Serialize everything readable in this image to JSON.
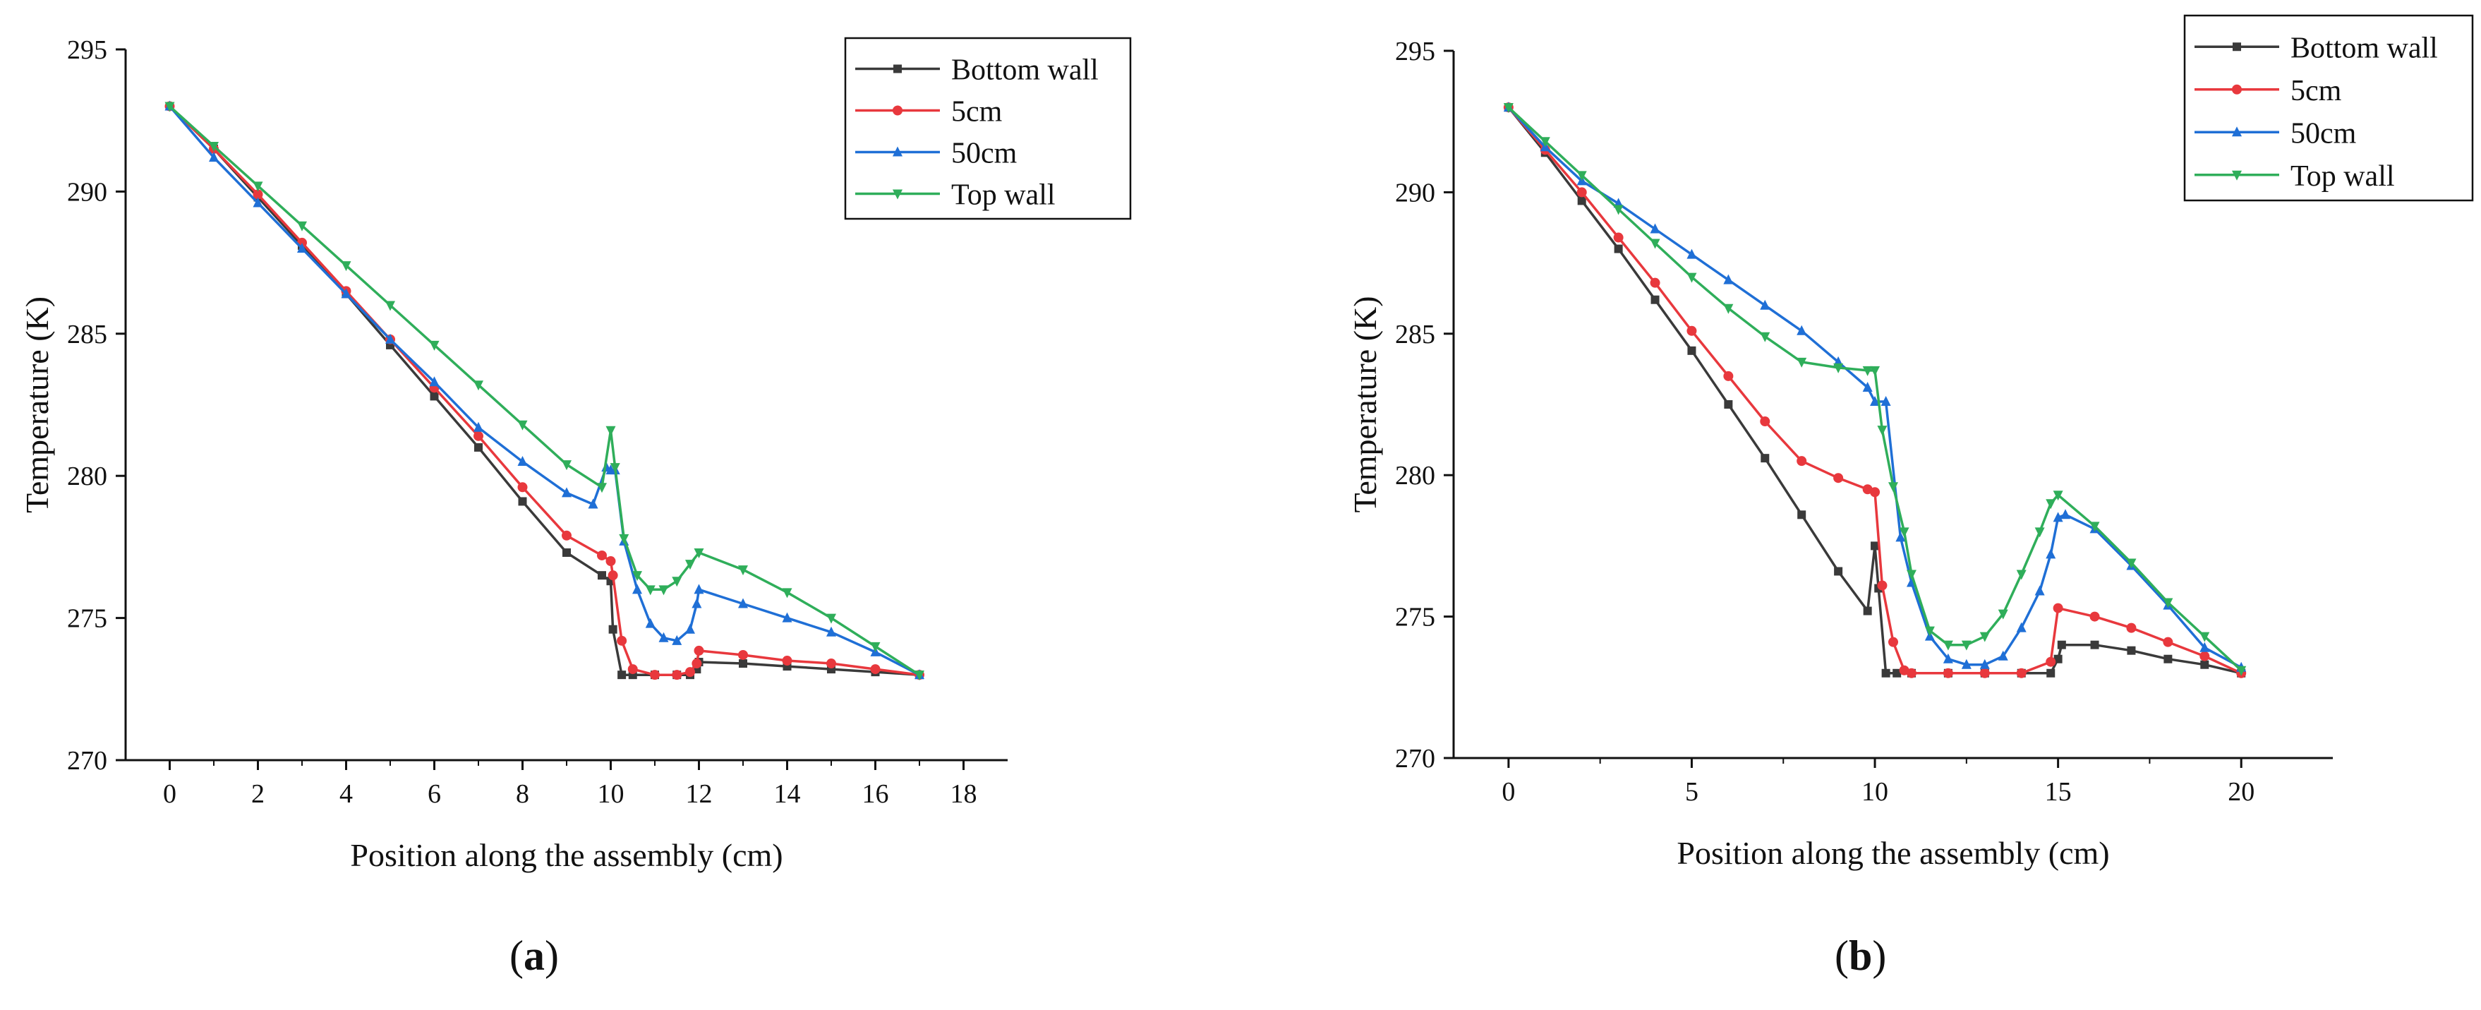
{
  "chart_data": [
    {
      "type": "line",
      "caption": "a",
      "xlabel": "Position along the assembly (cm)",
      "ylabel": "Temperature (K)",
      "xlim": [
        -1,
        19
      ],
      "ylim": [
        270,
        295
      ],
      "xticks": [
        0,
        2,
        4,
        6,
        8,
        10,
        12,
        14,
        16,
        18
      ],
      "yticks": [
        270,
        275,
        280,
        285,
        290,
        295
      ],
      "legend_position": "top-right",
      "series": [
        {
          "name": "Bottom wall",
          "color": "#3a3a3a",
          "marker": "square",
          "x": [
            0,
            1,
            2,
            3,
            4,
            5,
            6,
            7,
            8,
            9,
            9.8,
            10,
            10.05,
            10.25,
            10.5,
            11,
            11.5,
            11.8,
            11.95,
            12,
            13,
            14,
            15,
            16,
            17
          ],
          "y": [
            293,
            291.5,
            289.8,
            288.1,
            286.4,
            284.6,
            282.8,
            281.0,
            279.1,
            277.3,
            276.5,
            276.3,
            274.6,
            273.0,
            273.0,
            273.0,
            273.0,
            273.0,
            273.2,
            273.45,
            273.4,
            273.3,
            273.2,
            273.1,
            273.0
          ]
        },
        {
          "name": "5cm",
          "color": "#e8383d",
          "marker": "circle",
          "x": [
            0,
            1,
            2,
            3,
            4,
            5,
            6,
            7,
            8,
            9,
            9.8,
            10,
            10.05,
            10.25,
            10.5,
            11,
            11.5,
            11.8,
            11.95,
            12,
            13,
            14,
            15,
            16,
            17
          ],
          "y": [
            293,
            291.5,
            289.9,
            288.2,
            286.5,
            284.8,
            283.1,
            281.4,
            279.6,
            277.9,
            277.2,
            277.0,
            276.5,
            274.2,
            273.2,
            273.0,
            273.0,
            273.1,
            273.4,
            273.85,
            273.7,
            273.5,
            273.4,
            273.2,
            273.0
          ]
        },
        {
          "name": "50cm",
          "color": "#1f6fd6",
          "marker": "triangle-up",
          "x": [
            0,
            1,
            2,
            3,
            4,
            5,
            6,
            7,
            8,
            9,
            9.6,
            9.9,
            10,
            10.1,
            10.3,
            10.6,
            10.9,
            11.2,
            11.5,
            11.8,
            11.95,
            12,
            13,
            14,
            15,
            16,
            17
          ],
          "y": [
            293,
            291.2,
            289.6,
            288.0,
            286.4,
            284.8,
            283.3,
            281.7,
            280.5,
            279.4,
            279.0,
            280.3,
            280.2,
            280.2,
            277.7,
            276.0,
            274.8,
            274.3,
            274.2,
            274.6,
            275.5,
            276.0,
            275.5,
            275.0,
            274.5,
            273.8,
            273.0
          ]
        },
        {
          "name": "Top wall",
          "color": "#2fae5a",
          "marker": "triangle-down",
          "x": [
            0,
            1,
            2,
            3,
            4,
            5,
            6,
            7,
            8,
            9,
            9.8,
            10,
            10.1,
            10.3,
            10.6,
            10.9,
            11.2,
            11.5,
            11.8,
            12,
            13,
            14,
            15,
            16,
            17
          ],
          "y": [
            293,
            291.6,
            290.2,
            288.8,
            287.4,
            286.0,
            284.6,
            283.2,
            281.8,
            280.4,
            279.6,
            281.6,
            280.3,
            277.8,
            276.5,
            276.0,
            276.0,
            276.3,
            276.9,
            277.3,
            276.7,
            275.9,
            275.0,
            274.0,
            273.0
          ]
        }
      ]
    },
    {
      "type": "line",
      "caption": "b",
      "xlabel": "Position along the assembly (cm)",
      "ylabel": "Temperature (K)",
      "xlim": [
        -1.5,
        22.5
      ],
      "ylim": [
        270,
        295
      ],
      "xticks": [
        0,
        5,
        10,
        15,
        20
      ],
      "yticks": [
        270,
        275,
        280,
        285,
        290,
        295
      ],
      "legend_position": "top-right",
      "series": [
        {
          "name": "Bottom wall",
          "color": "#3a3a3a",
          "marker": "square",
          "x": [
            0,
            1,
            2,
            3,
            4,
            5,
            6,
            7,
            8,
            9,
            9.8,
            10,
            10.1,
            10.3,
            10.6,
            11,
            12,
            13,
            14,
            14.8,
            15,
            15.1,
            16,
            17,
            18,
            19,
            20
          ],
          "y": [
            293,
            291.4,
            289.7,
            288.0,
            286.2,
            284.4,
            282.5,
            280.6,
            278.6,
            276.6,
            275.2,
            277.5,
            276.0,
            273.0,
            273.0,
            273.0,
            273.0,
            273.0,
            273.0,
            273.0,
            273.5,
            274.0,
            274.0,
            273.8,
            273.5,
            273.3,
            273.0
          ]
        },
        {
          "name": "5cm",
          "color": "#e8383d",
          "marker": "circle",
          "x": [
            0,
            1,
            2,
            3,
            4,
            5,
            6,
            7,
            8,
            9,
            9.8,
            10,
            10.2,
            10.5,
            10.8,
            11,
            12,
            13,
            14,
            14.8,
            15,
            16,
            17,
            18,
            19,
            20
          ],
          "y": [
            293,
            291.5,
            290.0,
            288.4,
            286.8,
            285.1,
            283.5,
            281.9,
            280.5,
            279.9,
            279.5,
            279.4,
            276.1,
            274.1,
            273.1,
            273.0,
            273.0,
            273.0,
            273.0,
            273.4,
            275.3,
            275.0,
            274.6,
            274.1,
            273.6,
            273.0
          ]
        },
        {
          "name": "50cm",
          "color": "#1f6fd6",
          "marker": "triangle-up",
          "x": [
            0,
            1,
            2,
            3,
            4,
            5,
            6,
            7,
            8,
            9,
            9.8,
            10,
            10.3,
            10.7,
            11,
            11.5,
            12,
            12.5,
            13,
            13.5,
            14,
            14.5,
            14.8,
            15,
            15.2,
            16,
            17,
            18,
            19,
            20
          ],
          "y": [
            293,
            291.6,
            290.4,
            289.6,
            288.7,
            287.8,
            286.9,
            286.0,
            285.1,
            284.0,
            283.1,
            282.6,
            282.6,
            277.8,
            276.2,
            274.3,
            273.5,
            273.3,
            273.3,
            273.6,
            274.6,
            275.9,
            277.2,
            278.5,
            278.6,
            278.1,
            276.8,
            275.4,
            273.9,
            273.2
          ]
        },
        {
          "name": "Top wall",
          "color": "#2fae5a",
          "marker": "triangle-down",
          "x": [
            0,
            1,
            2,
            3,
            4,
            5,
            6,
            7,
            8,
            9,
            9.8,
            10,
            10.2,
            10.5,
            10.8,
            11,
            11.5,
            12,
            12.5,
            13,
            13.5,
            14,
            14.5,
            14.8,
            15,
            16,
            17,
            18,
            19,
            20
          ],
          "y": [
            293,
            291.8,
            290.6,
            289.4,
            288.2,
            287.0,
            285.9,
            284.9,
            284.0,
            283.8,
            283.7,
            283.7,
            281.6,
            279.6,
            278.0,
            276.5,
            274.5,
            274.0,
            274.0,
            274.3,
            275.1,
            276.5,
            278.0,
            279.0,
            279.3,
            278.2,
            276.9,
            275.5,
            274.3,
            273.1
          ]
        }
      ]
    }
  ]
}
